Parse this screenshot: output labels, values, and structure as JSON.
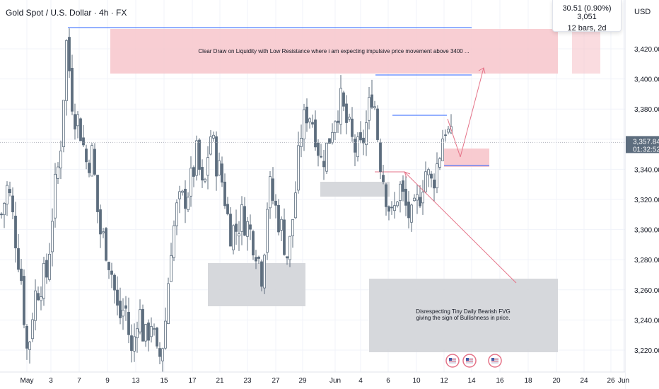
{
  "header": {
    "title": "Gold Spot / U.S. Dollar · 4h · FX",
    "currency": "USD"
  },
  "measure_box": {
    "line1": "30.51 (0.90%) 3,051",
    "line2": "12 bars, 2d"
  },
  "last_price": {
    "value": "3,357.84",
    "countdown": "01:32:52"
  },
  "annotations": {
    "liquidity_note": "Clear Draw on Liquidity with Low Resistance where i am expecting impulsive price movement above 3400 ...",
    "fvg_note_line1": "Disrespecting Tiny Daily Bearish FVG",
    "fvg_note_line2": "giving the sign of Bullishness in price."
  },
  "colors": {
    "candle": "#5d6d7e",
    "supply_zone": "#f7c5cb",
    "demand_zone": "#d1d4d8",
    "blue_line": "#2962ff",
    "arrow": "#e57388",
    "axis_text": "#131722"
  },
  "chart_data": {
    "type": "candlestick",
    "title": "Gold Spot / U.S. Dollar · 4h · FX",
    "y_ticks": [
      3220,
      3240,
      3260,
      3280,
      3300,
      3320,
      3340,
      3360,
      3380,
      3400,
      3420
    ],
    "y_tick_labels": [
      "3,220.00",
      "3,240.00",
      "3,260.00",
      "3,280.00",
      "3,300.00",
      "3,320.00",
      "3,340.00",
      "3,360.00",
      "3,380.00",
      "3,400.00",
      "3,420.00"
    ],
    "x_ticks": [
      "May",
      "3",
      "7",
      "9",
      "13",
      "15",
      "17",
      "21",
      "23",
      "27",
      "29",
      "Jun",
      "4",
      "6",
      "10",
      "12",
      "14",
      "16",
      "18",
      "20",
      "24",
      "26",
      "Jun"
    ],
    "grid": true,
    "close_path": [
      3310,
      3330,
      3300,
      3270,
      3215,
      3255,
      3265,
      3270,
      3320,
      3350,
      3425,
      3380,
      3370,
      3345,
      3350,
      3300,
      3290,
      3270,
      3240,
      3250,
      3215,
      3250,
      3225,
      3240,
      3210,
      3230,
      3290,
      3315,
      3320,
      3330,
      3350,
      3320,
      3365,
      3345,
      3330,
      3300,
      3300,
      3310,
      3300,
      3290,
      3270,
      3330,
      3315,
      3300,
      3280,
      3320,
      3365,
      3380,
      3370,
      3345,
      3355,
      3375,
      3385,
      3370,
      3355,
      3350,
      3370,
      3395,
      3350,
      3325,
      3305,
      3330,
      3315,
      3305,
      3320,
      3340,
      3330,
      3345,
      3370,
      3358
    ],
    "last_price": 3357.84,
    "zones": [
      {
        "label": "supply",
        "x_from": "9",
        "x_to": "26",
        "y_from": 3404,
        "y_to": 3432
      },
      {
        "label": "fvg",
        "x_from": "12",
        "x_to": "14",
        "y_from": 3342,
        "y_to": 3355
      },
      {
        "label": "demand",
        "x_from": "19",
        "x_to": "29",
        "y_from": 3249,
        "y_to": 3278
      },
      {
        "label": "demand",
        "x_from": "31",
        "x_to": "4",
        "y_from": 3323,
        "y_to": 3333
      }
    ],
    "levels": [
      3432,
      3404,
      3376,
      3343
    ]
  }
}
